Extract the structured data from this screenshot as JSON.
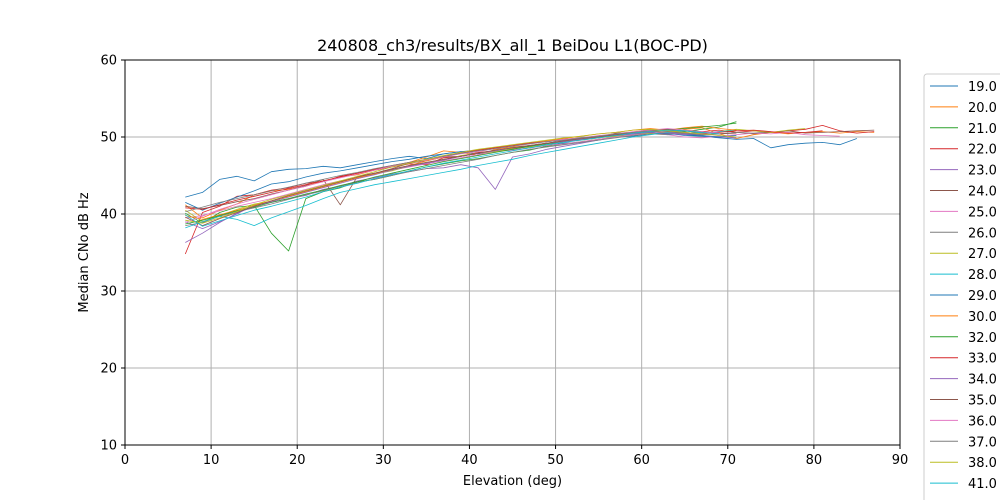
{
  "chart_data": {
    "type": "line",
    "title": "240808_ch3/results/BX_all_1 BeiDou L1(BOC-PD)",
    "xlabel": "Elevation (deg)",
    "ylabel": "Median CNo dB Hz",
    "xlim": [
      0,
      90
    ],
    "ylim": [
      10,
      60
    ],
    "xticks": [
      0,
      10,
      20,
      30,
      40,
      50,
      60,
      70,
      80,
      90
    ],
    "yticks": [
      10,
      20,
      30,
      40,
      50,
      60
    ],
    "grid": true,
    "legend_position": "right, outside plot, clipped at bottom",
    "visible_legend_labels": [
      "19.0",
      "20.0",
      "21.0",
      "22.0",
      "23.0",
      "24.0",
      "25.0",
      "26.0",
      "27.0",
      "28.0",
      "29.0",
      "30.0",
      "32.0",
      "33.0",
      "34.0",
      "35.0",
      "36.0",
      "37.0",
      "38.0",
      "41.0"
    ],
    "x": [
      7,
      9,
      11,
      13,
      15,
      17,
      19,
      21,
      23,
      25,
      27,
      29,
      31,
      33,
      35,
      37,
      39,
      41,
      43,
      45,
      47,
      49,
      51,
      53,
      55,
      57,
      59,
      61,
      63,
      65,
      67,
      69,
      71,
      73,
      75,
      77,
      79,
      81,
      83,
      85,
      87
    ],
    "series": [
      {
        "name": "19.0",
        "color": "#1f77b4",
        "values": [
          42.2,
          42.8,
          44.5,
          44.9,
          44.3,
          45.5,
          45.8,
          45.9,
          46.2,
          46.0,
          46.4,
          46.8,
          47.2,
          47.5,
          47.2,
          47.8,
          48.1,
          47.8,
          48.2,
          48.3,
          48.6,
          48.9,
          49.2,
          49.3,
          49.6,
          50.0,
          50.1,
          50.4,
          50.5,
          50.2,
          50.1,
          49.9,
          49.7,
          49.8,
          48.6,
          49.0,
          49.2,
          49.3,
          49.0,
          49.8,
          null
        ]
      },
      {
        "name": "20.0",
        "color": "#ff7f0e",
        "values": [
          41.2,
          39.5,
          40.5,
          41.3,
          42.5,
          43.0,
          43.2,
          43.6,
          44.3,
          44.8,
          45.1,
          45.7,
          46.2,
          46.7,
          47.4,
          48.2,
          48.0,
          47.6,
          48.4,
          48.7,
          48.9,
          49.2,
          49.5,
          49.8,
          50.1,
          50.3,
          50.5,
          50.8,
          50.5,
          51.0,
          51.2,
          50.4,
          49.8,
          50.3,
          50.6,
          50.4,
          50.6,
          50.7,
          50.5,
          50.7,
          50.6
        ]
      },
      {
        "name": "21.0",
        "color": "#2ca02c",
        "values": [
          40.1,
          38.8,
          40.2,
          40.9,
          41.1,
          37.5,
          35.2,
          42.0,
          42.9,
          43.4,
          44.2,
          44.5,
          45.0,
          45.6,
          46.1,
          46.5,
          46.9,
          47.2,
          47.6,
          48.0,
          48.3,
          48.8,
          49.1,
          49.4,
          49.7,
          50.0,
          50.3,
          50.6,
          50.4,
          50.7,
          51.0,
          51.3,
          52.0,
          null,
          null,
          null,
          null,
          null,
          null,
          null,
          null
        ]
      },
      {
        "name": "22.0",
        "color": "#d62728",
        "values": [
          34.8,
          40.2,
          41.0,
          42.3,
          42.5,
          43.1,
          43.4,
          44.0,
          44.2,
          44.9,
          45.3,
          45.7,
          46.1,
          46.5,
          46.4,
          47.3,
          47.5,
          48.0,
          48.2,
          48.6,
          48.9,
          49.2,
          49.4,
          49.7,
          50.0,
          50.3,
          50.6,
          50.9,
          50.8,
          50.9,
          50.7,
          50.9,
          50.6,
          50.8,
          50.6,
          50.8,
          51.0,
          51.5,
          50.8,
          50.5,
          50.7
        ]
      },
      {
        "name": "23.0",
        "color": "#9467bd",
        "values": [
          39.0,
          38.1,
          39.0,
          40.0,
          41.2,
          41.5,
          42.0,
          42.4,
          43.2,
          43.6,
          44.3,
          44.7,
          45.2,
          45.5,
          45.9,
          46.0,
          46.4,
          46.0,
          43.2,
          47.4,
          47.8,
          48.4,
          48.8,
          49.2,
          49.6,
          50.0,
          50.3,
          50.5,
          50.6,
          50.4,
          50.2,
          50.0,
          49.9,
          null,
          null,
          null,
          null,
          null,
          null,
          null,
          null
        ]
      },
      {
        "name": "24.0",
        "color": "#8c564b",
        "values": [
          41.0,
          40.7,
          41.1,
          41.6,
          42.0,
          42.6,
          43.1,
          43.7,
          44.5,
          41.2,
          44.9,
          45.3,
          45.9,
          46.6,
          46.9,
          47.4,
          47.5,
          47.9,
          48.1,
          48.5,
          48.8,
          49.2,
          49.4,
          49.7,
          50.0,
          50.5,
          50.6,
          51.0,
          50.8,
          50.5,
          50.3,
          50.4,
          50.6,
          50.4,
          50.6,
          50.8,
          50.5,
          50.6,
          50.7,
          50.8,
          50.9
        ]
      },
      {
        "name": "25.0",
        "color": "#e377c2",
        "values": [
          39.5,
          39.8,
          40.4,
          41.0,
          41.5,
          42.0,
          42.6,
          43.2,
          43.8,
          44.3,
          44.7,
          45.3,
          45.7,
          46.1,
          46.5,
          46.9,
          47.3,
          47.7,
          48.1,
          48.3,
          48.6,
          48.9,
          49.1,
          49.4,
          49.7,
          50.0,
          50.3,
          50.5,
          50.3,
          50.0,
          49.9,
          50.1,
          50.3,
          50.5,
          50.4,
          50.6,
          50.3,
          50.2,
          50.1,
          null,
          null
        ]
      },
      {
        "name": "26.0",
        "color": "#7f7f7f",
        "values": [
          38.5,
          38.9,
          39.7,
          40.3,
          40.8,
          41.3,
          41.9,
          42.5,
          43.0,
          43.6,
          44.1,
          44.5,
          45.0,
          45.5,
          45.9,
          46.3,
          46.7,
          47.1,
          47.6,
          48.0,
          48.4,
          48.7,
          49.0,
          49.3,
          49.6,
          49.9,
          50.2,
          50.4,
          50.3,
          50.5,
          50.6,
          50.4,
          50.6,
          50.5,
          50.7,
          null,
          null,
          null,
          null,
          null,
          null
        ]
      },
      {
        "name": "27.0",
        "color": "#bcbd22",
        "values": [
          40.5,
          39.0,
          39.8,
          40.6,
          41.3,
          41.6,
          42.3,
          42.9,
          43.6,
          44.3,
          44.6,
          45.2,
          45.6,
          46.2,
          46.7,
          47.0,
          47.6,
          47.9,
          48.1,
          48.5,
          48.7,
          49.0,
          49.4,
          49.6,
          49.9,
          50.1,
          50.4,
          50.5,
          50.6,
          50.8,
          50.5,
          50.7,
          51.0,
          50.8,
          50.6,
          50.9,
          51.1,
          null,
          null,
          null,
          null
        ]
      },
      {
        "name": "28.0",
        "color": "#17becf",
        "values": [
          38.2,
          39.0,
          39.7,
          39.3,
          38.5,
          39.5,
          40.3,
          41.1,
          42.0,
          42.8,
          43.3,
          43.8,
          44.2,
          44.6,
          45.0,
          45.4,
          45.8,
          46.3,
          46.7,
          47.1,
          47.6,
          48.0,
          48.4,
          48.8,
          49.2,
          49.6,
          50.0,
          50.3,
          50.6,
          50.8,
          50.5,
          50.7,
          50.9,
          null,
          null,
          null,
          null,
          null,
          null,
          null,
          null
        ]
      },
      {
        "name": "29.0",
        "color": "#1f77b4",
        "values": [
          41.5,
          40.5,
          41.4,
          42.2,
          43.0,
          43.9,
          44.2,
          44.8,
          45.3,
          45.6,
          46.0,
          46.4,
          46.8,
          47.1,
          47.5,
          47.8,
          48.1,
          48.3,
          48.6,
          48.9,
          49.2,
          49.4,
          49.6,
          49.8,
          50.0,
          50.2,
          50.4,
          50.6,
          50.4,
          50.3,
          50.2,
          50.0,
          50.2,
          null,
          null,
          null,
          null,
          null,
          null,
          null,
          null
        ]
      },
      {
        "name": "30.0",
        "color": "#ff7f0e",
        "values": [
          39.8,
          39.3,
          39.9,
          40.5,
          41.1,
          41.7,
          42.3,
          42.9,
          43.5,
          44.1,
          44.7,
          45.2,
          45.8,
          46.3,
          46.9,
          47.4,
          47.9,
          48.3,
          48.6,
          48.9,
          49.2,
          49.5,
          49.8,
          50.1,
          50.4,
          50.6,
          50.9,
          51.1,
          50.9,
          51.2,
          51.4,
          51.1,
          50.9,
          null,
          null,
          null,
          null,
          null,
          null,
          null,
          null
        ]
      },
      {
        "name": "32.0",
        "color": "#2ca02c",
        "values": [
          38.7,
          39.2,
          39.8,
          40.4,
          40.9,
          41.5,
          42.0,
          42.6,
          43.1,
          43.7,
          44.2,
          44.8,
          45.3,
          45.8,
          46.3,
          46.8,
          47.2,
          47.6,
          48.0,
          48.4,
          48.8,
          49.1,
          49.4,
          49.7,
          50.0,
          50.3,
          50.5,
          50.7,
          50.9,
          51.1,
          51.3,
          51.5,
          51.8,
          null,
          null,
          null,
          null,
          null,
          null,
          null,
          null
        ]
      },
      {
        "name": "33.0",
        "color": "#d62728",
        "values": [
          40.8,
          40.6,
          41.2,
          41.8,
          42.3,
          42.8,
          43.3,
          43.8,
          44.3,
          44.8,
          45.3,
          45.8,
          46.3,
          46.7,
          47.1,
          47.5,
          47.9,
          48.3,
          48.6,
          48.9,
          49.2,
          49.4,
          49.7,
          49.9,
          50.1,
          50.3,
          50.5,
          50.7,
          50.8,
          50.6,
          50.4,
          50.6,
          50.8,
          50.9,
          50.7,
          50.5,
          50.6,
          50.8,
          null,
          null,
          null
        ]
      },
      {
        "name": "34.0",
        "color": "#9467bd",
        "values": [
          36.3,
          37.5,
          38.9,
          40.1,
          41.0,
          41.6,
          42.2,
          42.8,
          43.4,
          44.0,
          44.6,
          45.1,
          45.7,
          46.2,
          46.6,
          47.0,
          47.5,
          47.9,
          48.2,
          48.6,
          48.9,
          49.2,
          49.4,
          49.7,
          50.0,
          50.2,
          50.4,
          50.6,
          50.5,
          50.3,
          50.5,
          50.7,
          null,
          null,
          null,
          null,
          null,
          null,
          null,
          null,
          null
        ]
      },
      {
        "name": "35.0",
        "color": "#8c564b",
        "values": [
          39.6,
          38.5,
          39.4,
          40.2,
          41.0,
          41.7,
          42.4,
          43.0,
          43.6,
          44.2,
          44.8,
          45.3,
          45.8,
          46.3,
          46.7,
          47.1,
          47.5,
          47.9,
          48.3,
          48.6,
          48.9,
          49.2,
          49.5,
          49.8,
          50.0,
          50.3,
          50.6,
          50.9,
          51.0,
          50.8,
          50.6,
          50.4,
          50.5,
          null,
          null,
          null,
          null,
          null,
          null,
          null,
          null
        ]
      },
      {
        "name": "36.0",
        "color": "#e377c2",
        "values": [
          38.9,
          39.7,
          40.6,
          41.3,
          41.9,
          42.5,
          43.1,
          43.6,
          44.2,
          44.7,
          45.2,
          45.7,
          46.2,
          46.6,
          47.0,
          47.4,
          47.8,
          48.1,
          48.5,
          48.8,
          49.1,
          49.4,
          49.7,
          49.9,
          50.2,
          50.4,
          50.7,
          50.9,
          51.1,
          50.9,
          50.7,
          50.5,
          null,
          null,
          null,
          null,
          null,
          null,
          null,
          null,
          null
        ]
      },
      {
        "name": "37.0",
        "color": "#7f7f7f",
        "values": [
          40.3,
          40.9,
          41.5,
          42.0,
          42.5,
          43.0,
          43.5,
          44.0,
          44.5,
          45.0,
          45.4,
          45.9,
          46.3,
          46.7,
          47.1,
          47.5,
          47.9,
          48.2,
          48.5,
          48.8,
          49.1,
          49.4,
          49.6,
          49.9,
          50.1,
          50.4,
          50.6,
          50.8,
          50.7,
          50.5,
          50.3,
          50.4,
          null,
          null,
          null,
          null,
          null,
          null,
          null,
          null,
          null
        ]
      },
      {
        "name": "38.0",
        "color": "#bcbd22",
        "values": [
          39.2,
          38.8,
          39.5,
          40.3,
          41.2,
          41.9,
          42.5,
          43.1,
          43.7,
          44.3,
          44.9,
          45.5,
          46.1,
          46.6,
          47.1,
          47.6,
          48.0,
          48.4,
          48.7,
          49.0,
          49.3,
          49.6,
          49.9,
          50.1,
          50.4,
          50.6,
          50.9,
          51.0,
          50.8,
          50.6,
          50.4,
          50.2,
          50.0,
          null,
          null,
          null,
          null,
          null,
          null,
          null,
          null
        ]
      },
      {
        "name": "41.0",
        "color": "#17becf",
        "values": [
          39.9,
          38.4,
          39.1,
          39.8,
          40.5,
          41.0,
          41.6,
          42.2,
          42.9,
          43.5,
          44.0,
          44.6,
          45.1,
          45.6,
          46.1,
          46.6,
          47.0,
          47.4,
          47.8,
          48.2,
          48.6,
          49.0,
          49.3,
          49.6,
          49.9,
          50.2,
          50.5,
          50.7,
          50.9,
          50.8,
          50.6,
          50.4,
          null,
          null,
          null,
          null,
          null,
          null,
          null,
          null,
          null
        ]
      }
    ]
  }
}
